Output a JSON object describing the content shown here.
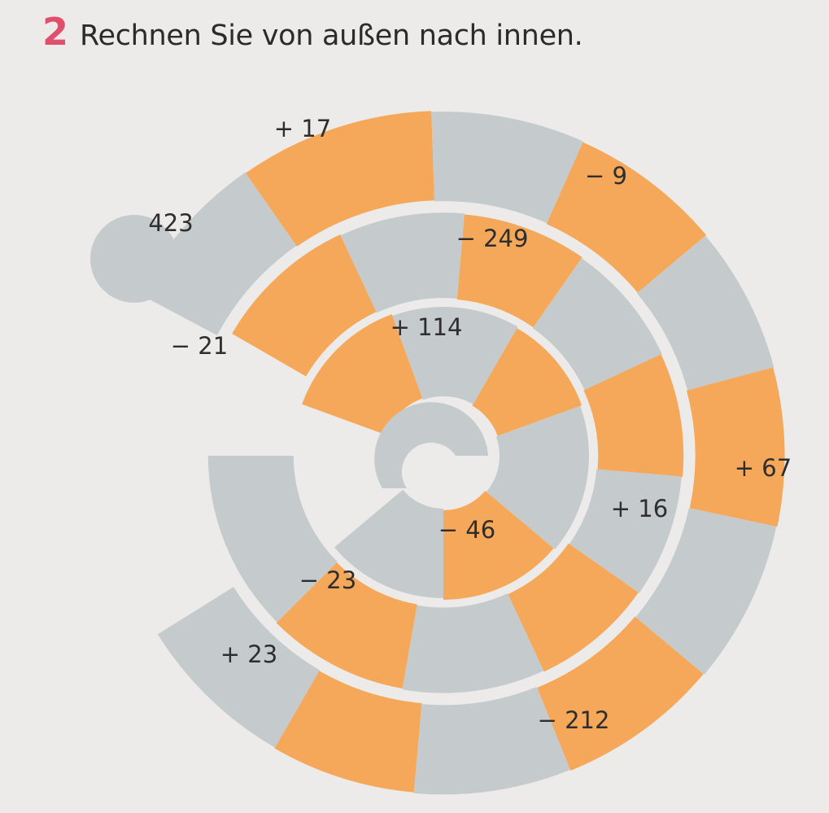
{
  "task": {
    "number": "2",
    "instruction": "Rechnen Sie von außen nach innen."
  },
  "colors": {
    "orange": "#f5a85a",
    "grey": "#c5cbcd",
    "number": "#e0506c"
  },
  "spiral": {
    "start_value": "423",
    "operations": [
      "+ 17",
      "− 9",
      "+ 67",
      "− 212",
      "+ 23",
      "− 21",
      "− 249",
      "+ 16",
      "− 23",
      "+ 114",
      "− 46"
    ]
  }
}
